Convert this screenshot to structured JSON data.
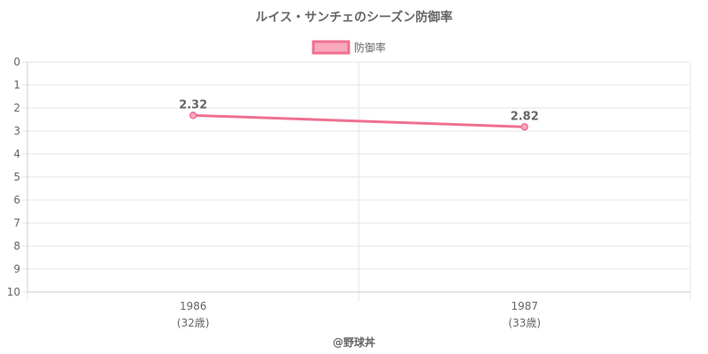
{
  "chart_data": {
    "type": "line",
    "title": "ルイス・サンチェのシーズン防御率",
    "categories": [
      "1986",
      "1987"
    ],
    "category_sublabels": [
      "(32歳)",
      "(33歳)"
    ],
    "series": [
      {
        "name": "防御率",
        "values": [
          2.32,
          2.82
        ],
        "data_labels": [
          "2.32",
          "2.82"
        ]
      }
    ],
    "y_ticks": [
      "0",
      "1",
      "2",
      "3",
      "4",
      "5",
      "6",
      "7",
      "8",
      "9",
      "10"
    ],
    "ylim": [
      0,
      10
    ],
    "y_reversed": true,
    "grid": true,
    "legend_position": "top",
    "colors": {
      "line": "#f07090",
      "legend_fill": "#f8a8bc",
      "grid": "#e6e6e6",
      "axis": "#cccccc",
      "text": "#666666"
    }
  },
  "credit": "@野球丼"
}
